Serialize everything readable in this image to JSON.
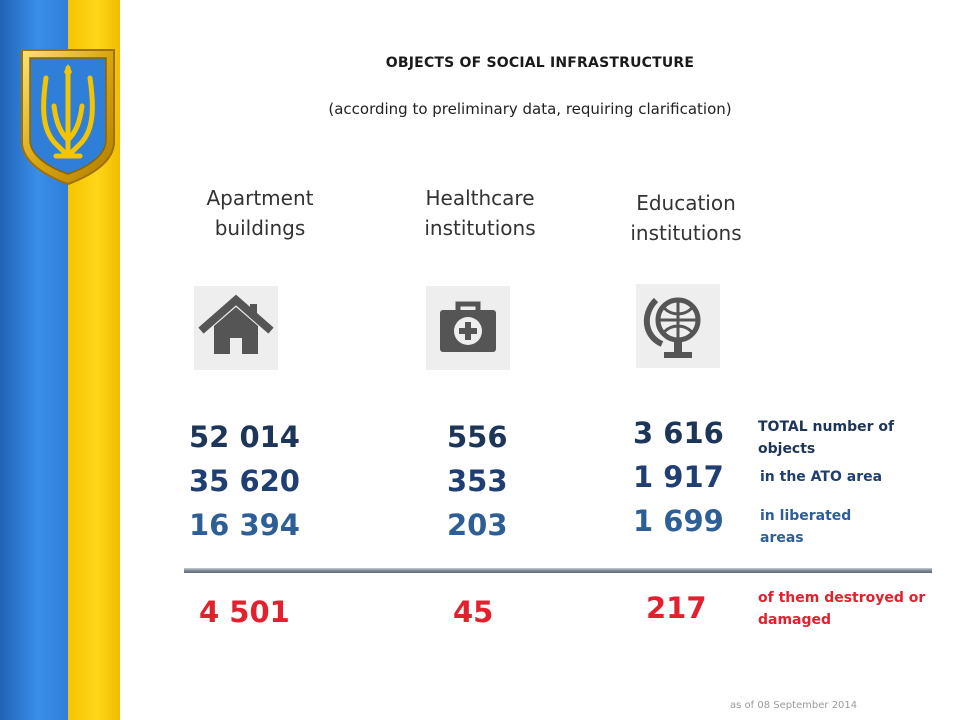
{
  "title": "OBJECTS OF SOCIAL INFRASTRUCTURE",
  "subtitle": "(according to preliminary data, requiring clarification)",
  "categories": [
    {
      "name": "Apartment buildings",
      "icon": "house-icon",
      "total": "52 014",
      "ato": "35 620",
      "liberated": "16 394",
      "destroyed": "4 501"
    },
    {
      "name": "Healthcare institutions",
      "icon": "first-aid-kit-icon",
      "total": "556",
      "ato": "353",
      "liberated": "203",
      "destroyed": "45"
    },
    {
      "name": "Education institutions",
      "icon": "globe-icon",
      "total": "3 616",
      "ato": "1 917",
      "liberated": "1 699",
      "destroyed": "217"
    }
  ],
  "legend": {
    "total": "TOTAL number of objects",
    "ato": "in the ATO area",
    "liberated": "in liberated areas",
    "destroyed": "of them destroyed or damaged"
  },
  "footer": "as of  08 September 2014",
  "colors": {
    "flag_blue": "#2f7fd8",
    "flag_yellow": "#ffd61a",
    "total_text": "#1c3559",
    "ato_text": "#1f3f73",
    "liberated_text": "#2d5e96",
    "destroyed_text": "#e3202d"
  }
}
